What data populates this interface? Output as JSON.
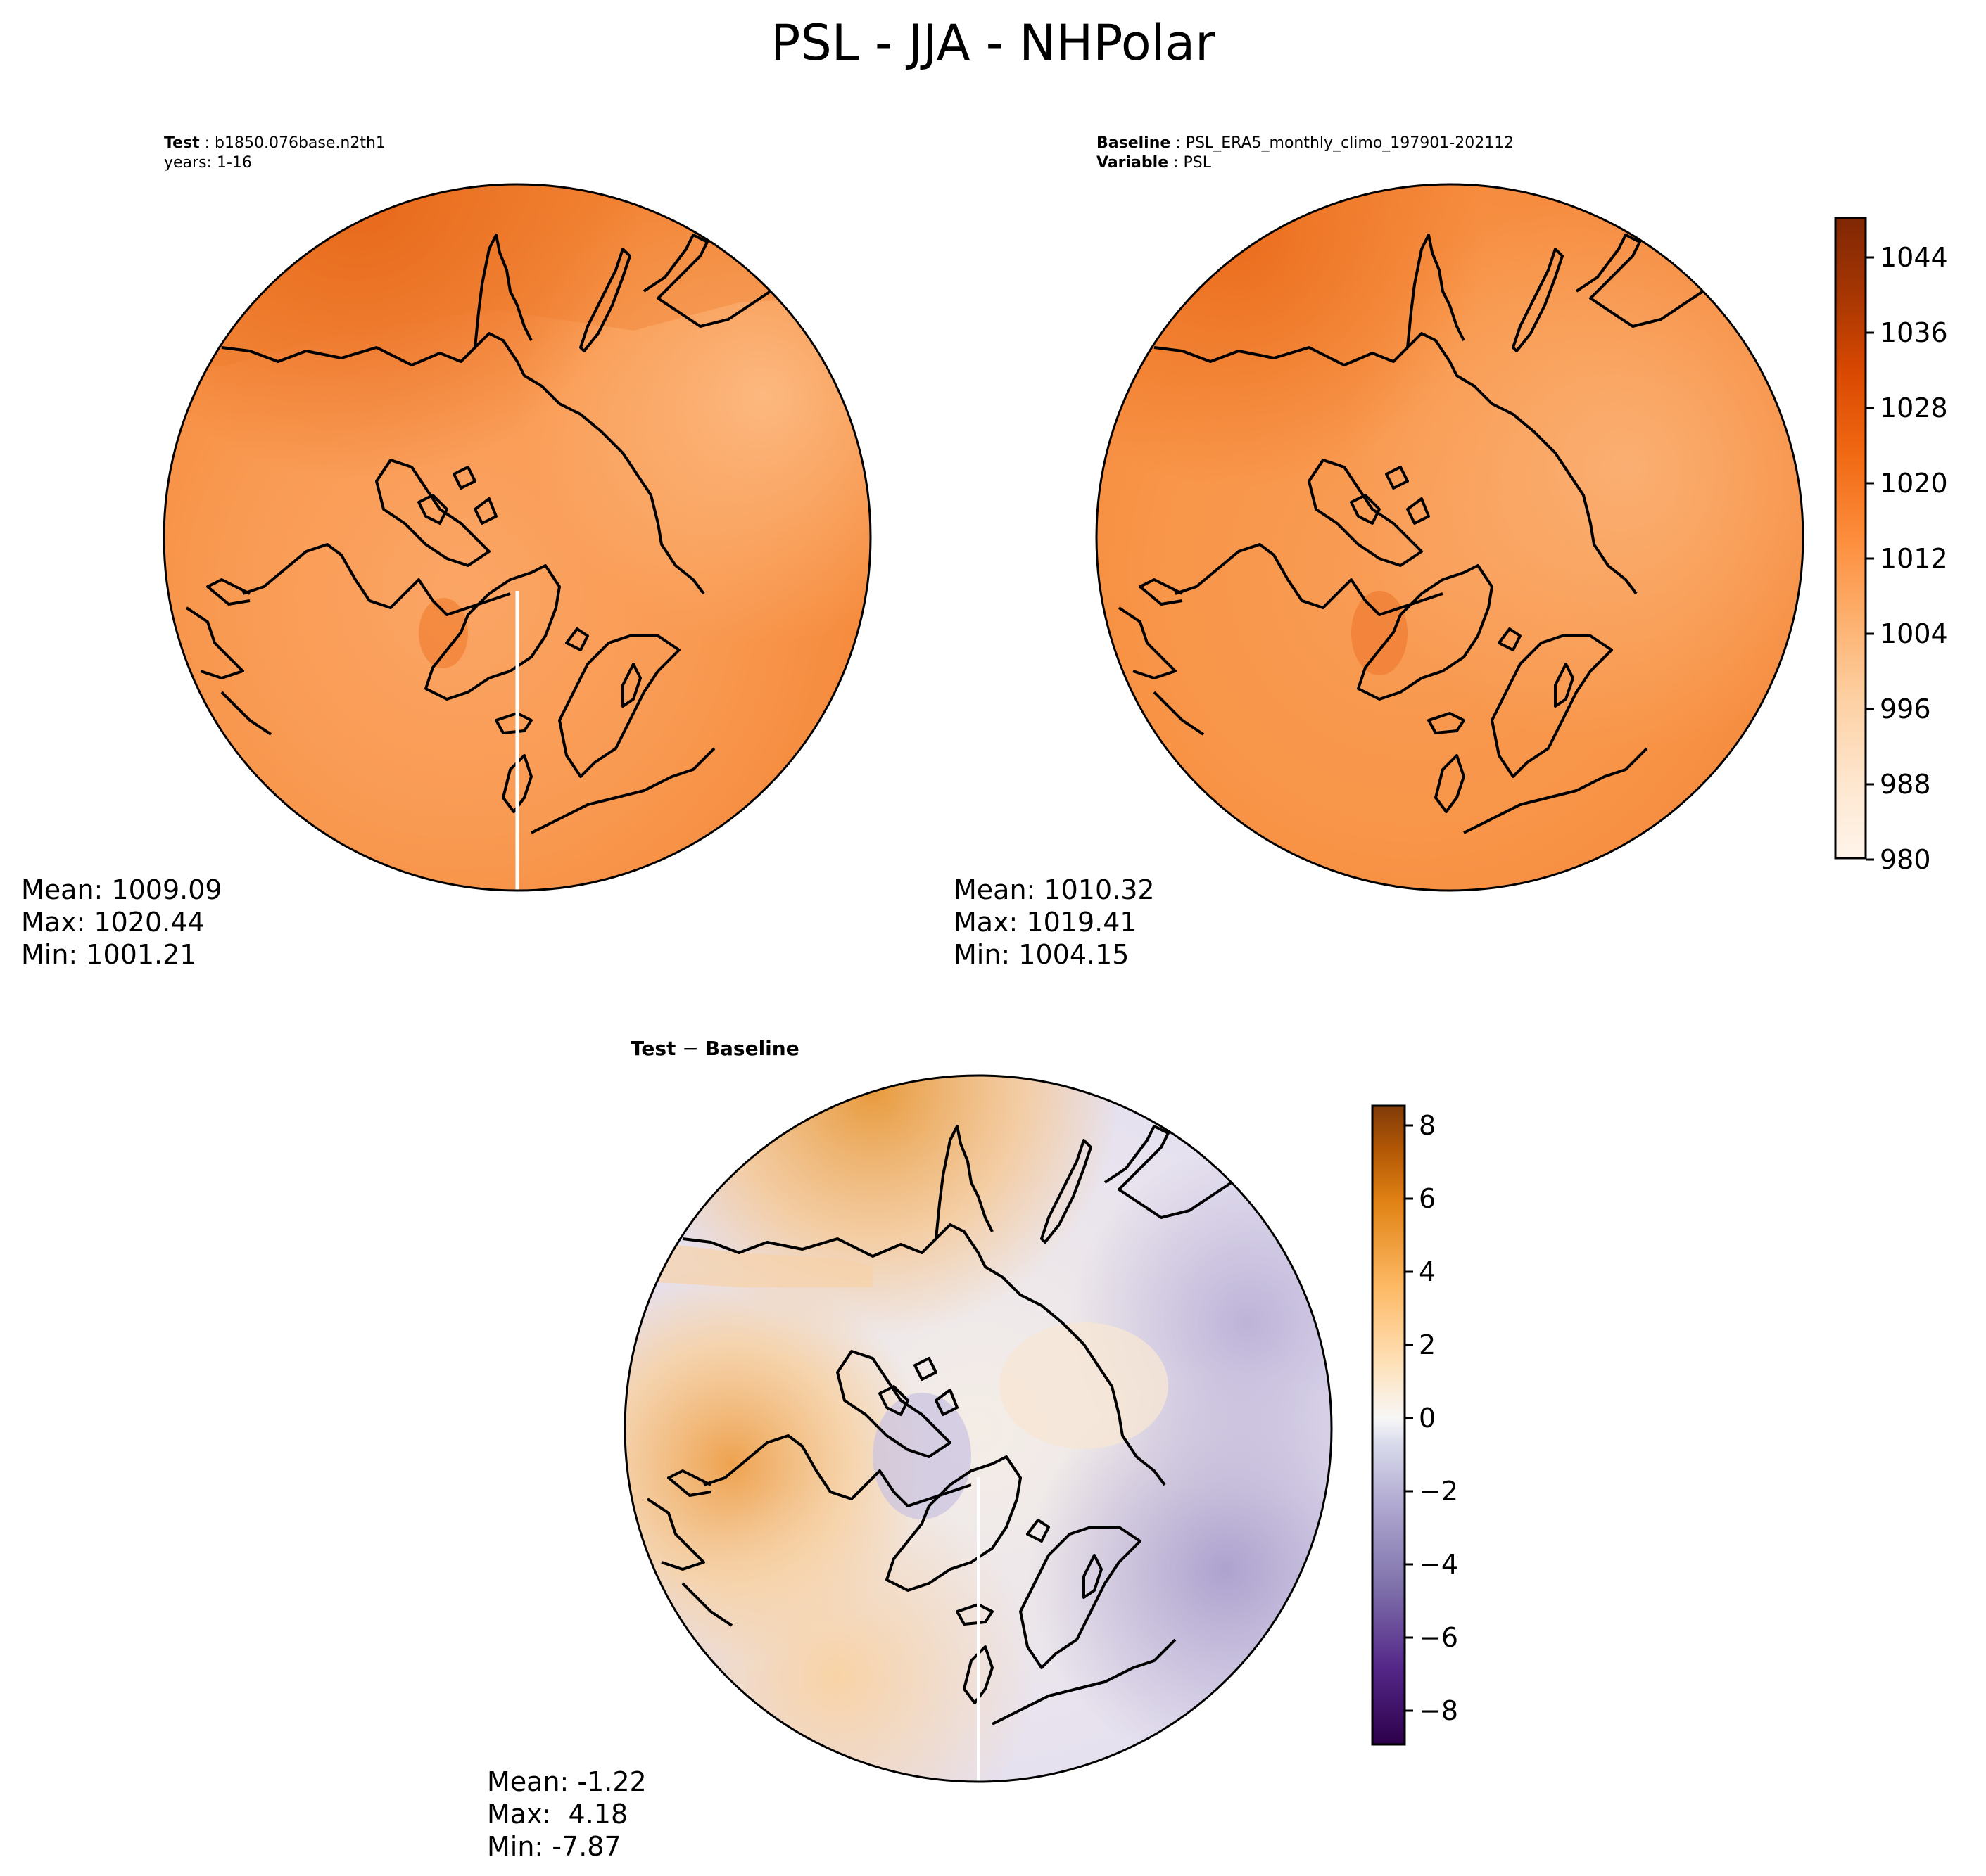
{
  "suptitle": "PSL - JJA - NHPolar",
  "panels": {
    "test": {
      "label_key": "Test",
      "label_value": "b1850.076base.n2th1",
      "line2": "years: 1-16",
      "stats": {
        "mean": "Mean: 1009.09",
        "max": "Max: 1020.44",
        "min": "Min: 1001.21"
      }
    },
    "baseline": {
      "label_key": "Baseline",
      "label_value": "PSL_ERA5_monthly_climo_197901-202112",
      "var_key": "Variable",
      "var_value": "PSL",
      "stats": {
        "mean": "Mean: 1010.32",
        "max": "Max: 1019.41",
        "min": "Min: 1004.15"
      }
    },
    "diff": {
      "title_a": "Test",
      "title_sep": " − ",
      "title_b": "Baseline",
      "stats": {
        "mean": "Mean: -1.22",
        "max": "Max:  4.18",
        "min": "Min: -7.87"
      }
    }
  },
  "colorbars": {
    "main": {
      "ticks": [
        "1044",
        "1036",
        "1028",
        "1020",
        "1012",
        "1004",
        "996",
        "988",
        "980"
      ],
      "levels": [
        980,
        984,
        988,
        992,
        996,
        1000,
        1004,
        1008,
        1012,
        1016,
        1020,
        1024,
        1028,
        1032,
        1036,
        1040,
        1044,
        1048
      ],
      "colormap": "Oranges"
    },
    "diff": {
      "ticks": [
        "8",
        "6",
        "4",
        "2",
        "0",
        "−2",
        "−4",
        "−6",
        "−8"
      ],
      "range": [
        -9,
        8.5
      ],
      "colormap": "PuOr_r"
    }
  },
  "colors": {
    "test_field": "#f79245",
    "baseline_field": "#f7984e",
    "diff_field": "#efeaf2",
    "coastline": "#000000"
  }
}
